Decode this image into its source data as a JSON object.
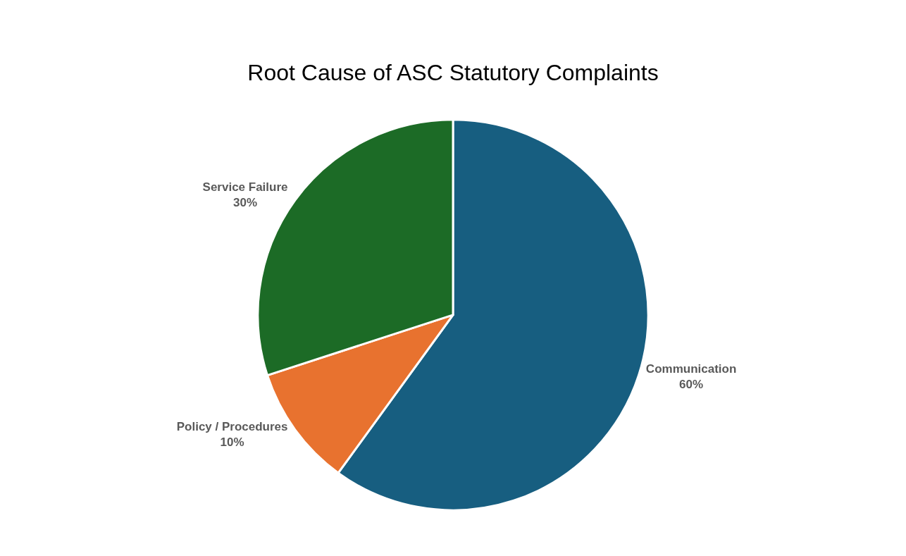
{
  "chart_data": {
    "type": "pie",
    "title": "Root Cause of ASC Statutory Complaints",
    "categories": [
      "Communication",
      "Policy / Procedures",
      "Service Failure"
    ],
    "values": [
      60,
      10,
      30
    ],
    "value_labels": [
      "60%",
      "10%",
      "30%"
    ],
    "colors": [
      "#175e80",
      "#e8722f",
      "#1c6b26"
    ],
    "legend": false
  }
}
